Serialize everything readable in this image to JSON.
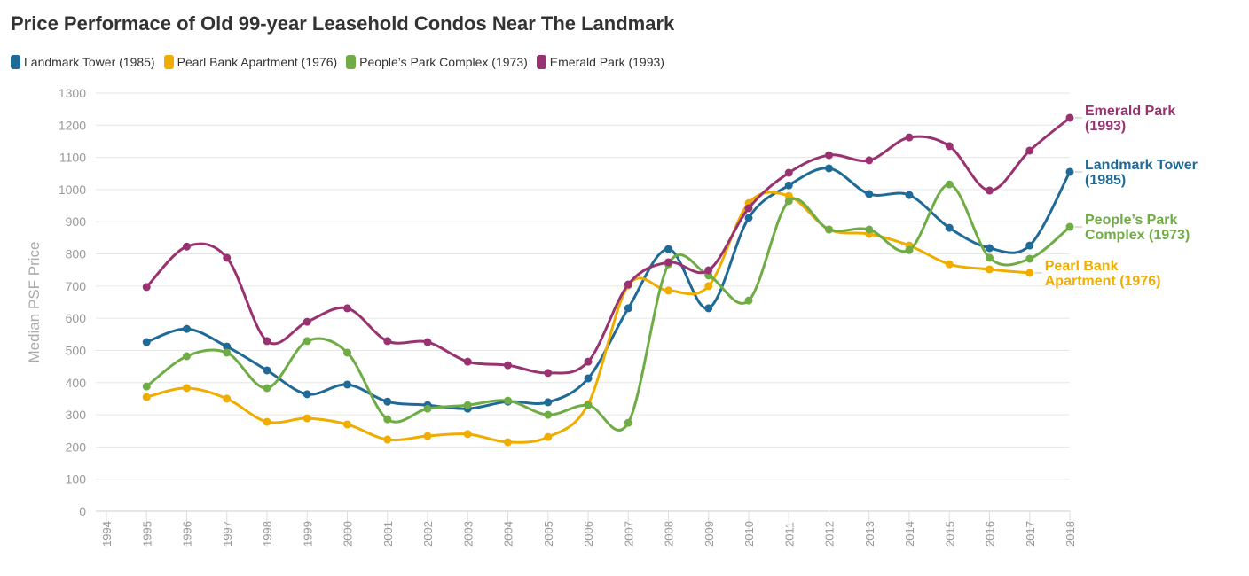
{
  "title": "Price Performace of Old 99-year Leasehold Condos Near The Landmark",
  "chart_data": {
    "type": "line",
    "title": "Price Performace of Old 99-year Leasehold Condos Near The Landmark",
    "xlabel": "",
    "ylabel": "Median PSF Price",
    "ylim": [
      0,
      1300
    ],
    "xlim": [
      1994,
      2018
    ],
    "yticks": [
      0,
      100,
      200,
      300,
      400,
      500,
      600,
      700,
      800,
      900,
      1000,
      1100,
      1200,
      1300
    ],
    "xticks": [
      1994,
      1995,
      1996,
      1997,
      1998,
      1999,
      2000,
      2001,
      2002,
      2003,
      2004,
      2005,
      2006,
      2007,
      2008,
      2009,
      2010,
      2011,
      2012,
      2013,
      2014,
      2015,
      2016,
      2017,
      2018
    ],
    "grid": "horizontal",
    "legend": "top-left",
    "series": [
      {
        "name": "Landmark Tower (1985)",
        "color": "#1f6a96",
        "end_label": [
          "Landmark Tower",
          "(1985)"
        ],
        "x": [
          1995,
          1996,
          1997,
          1998,
          1999,
          2000,
          2001,
          2002,
          2003,
          2004,
          2005,
          2006,
          2007,
          2008,
          2009,
          2010,
          2011,
          2012,
          2013,
          2014,
          2015,
          2016,
          2017,
          2018
        ],
        "values": [
          526,
          567,
          512,
          438,
          364,
          394,
          341,
          330,
          319,
          341,
          339,
          413,
          631,
          815,
          631,
          912,
          1013,
          1066,
          986,
          983,
          881,
          818,
          826,
          1055
        ]
      },
      {
        "name": "Pearl Bank Apartment (1976)",
        "color": "#f0ad00",
        "end_label": [
          "Pearl Bank",
          "Apartment (1976)"
        ],
        "x": [
          1995,
          1996,
          1997,
          1998,
          1999,
          2000,
          2001,
          2002,
          2003,
          2004,
          2005,
          2006,
          2007,
          2008,
          2009,
          2010,
          2011,
          2012,
          2013,
          2014,
          2015,
          2016,
          2017
        ],
        "values": [
          355,
          383,
          350,
          278,
          289,
          270,
          223,
          234,
          240,
          215,
          231,
          333,
          702,
          686,
          700,
          958,
          980,
          876,
          862,
          826,
          768,
          752,
          741
        ]
      },
      {
        "name": "People’s Park Complex (1973)",
        "color": "#6fac46",
        "end_label": [
          "People’s Park",
          "Complex (1973)"
        ],
        "x": [
          1995,
          1996,
          1997,
          1998,
          1999,
          2000,
          2001,
          2002,
          2003,
          2004,
          2005,
          2006,
          2007,
          2008,
          2009,
          2010,
          2011,
          2012,
          2013,
          2014,
          2015,
          2016,
          2017,
          2018
        ],
        "values": [
          388,
          482,
          493,
          383,
          529,
          493,
          286,
          319,
          330,
          344,
          300,
          330,
          275,
          768,
          733,
          655,
          964,
          876,
          876,
          812,
          1016,
          788,
          785,
          884
        ]
      },
      {
        "name": "Emerald Park (1993)",
        "color": "#993270",
        "end_label": [
          "Emerald Park",
          "(1993)"
        ],
        "x": [
          1995,
          1996,
          1997,
          1998,
          1999,
          2000,
          2001,
          2002,
          2003,
          2004,
          2005,
          2006,
          2007,
          2008,
          2009,
          2010,
          2011,
          2012,
          2013,
          2014,
          2015,
          2016,
          2017,
          2018
        ],
        "values": [
          697,
          823,
          788,
          529,
          589,
          631,
          529,
          526,
          465,
          454,
          430,
          465,
          705,
          774,
          749,
          942,
          1052,
          1107,
          1091,
          1162,
          1135,
          997,
          1121,
          1223
        ]
      }
    ]
  }
}
